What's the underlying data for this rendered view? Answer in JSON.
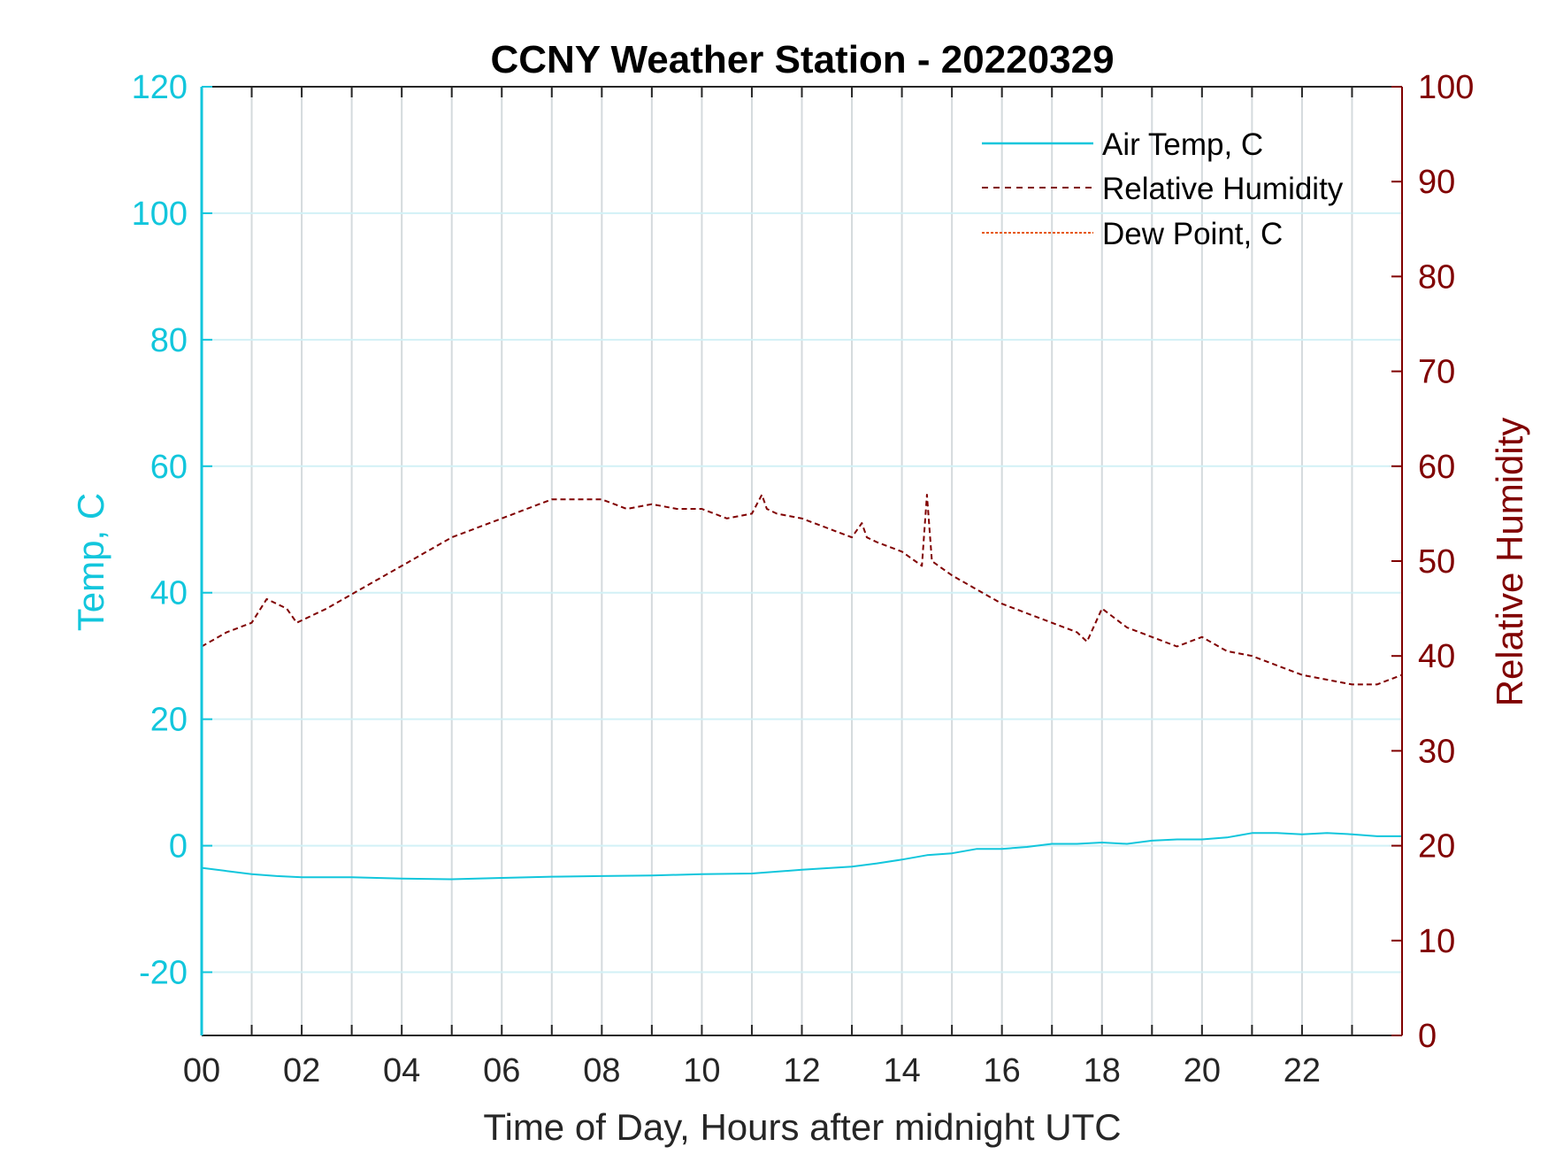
{
  "chart_data": {
    "type": "line",
    "title": "CCNY Weather Station - 20220329",
    "xlabel": "Time of Day, Hours after midnight UTC",
    "ylabel_left": "Temp, C",
    "ylabel_right": "Relative Humidity",
    "xlim": [
      0,
      24
    ],
    "ylim_left": [
      -30,
      120
    ],
    "ylim_right": [
      0,
      100
    ],
    "x_ticks": [
      0,
      2,
      4,
      6,
      8,
      10,
      12,
      14,
      16,
      18,
      20,
      22
    ],
    "x_tick_labels": [
      "00",
      "02",
      "04",
      "06",
      "08",
      "10",
      "12",
      "14",
      "16",
      "18",
      "20",
      "22"
    ],
    "y_left_ticks": [
      -20,
      0,
      20,
      40,
      60,
      80,
      100,
      120
    ],
    "y_left_tick_labels": [
      "-20",
      "0",
      "20",
      "40",
      "60",
      "80",
      "100",
      "120"
    ],
    "y_right_ticks": [
      0,
      10,
      20,
      30,
      40,
      50,
      60,
      70,
      80,
      90,
      100
    ],
    "y_right_tick_labels": [
      "0",
      "10",
      "20",
      "30",
      "40",
      "50",
      "60",
      "70",
      "80",
      "90",
      "100"
    ],
    "grid": true,
    "legend_position": "top-right",
    "series": [
      {
        "name": "Air Temp, C",
        "axis": "left",
        "color": "#12c6dc",
        "style": "solid",
        "x": [
          0,
          0.5,
          1,
          1.5,
          2,
          3,
          4,
          5,
          6,
          7,
          8,
          9,
          10,
          11,
          12,
          13,
          13.5,
          14,
          14.5,
          15,
          15.5,
          16,
          16.5,
          17,
          17.5,
          18,
          18.5,
          19,
          19.5,
          20,
          20.5,
          21,
          21.5,
          22,
          22.5,
          23,
          23.5,
          24
        ],
        "values": [
          -3.5,
          -4,
          -4.5,
          -4.8,
          -5,
          -5,
          -5.2,
          -5.3,
          -5.1,
          -4.9,
          -4.8,
          -4.7,
          -4.5,
          -4.4,
          -3.8,
          -3.3,
          -2.8,
          -2.2,
          -1.5,
          -1.2,
          -0.5,
          -0.5,
          -0.2,
          0.3,
          0.3,
          0.5,
          0.3,
          0.8,
          1.0,
          1.0,
          1.3,
          2.0,
          2.0,
          1.8,
          2.0,
          1.8,
          1.5,
          1.5
        ]
      },
      {
        "name": "Relative Humidity",
        "axis": "right",
        "color": "#800000",
        "style": "dashed",
        "x": [
          0,
          0.5,
          1,
          1.3,
          1.7,
          1.9,
          2.5,
          3,
          3.5,
          4,
          4.5,
          5,
          5.5,
          6,
          6.5,
          7,
          7.5,
          8,
          8.5,
          9,
          9.5,
          10,
          10.5,
          11,
          11.2,
          11.3,
          11.5,
          12,
          12.5,
          13,
          13.2,
          13.3,
          13.5,
          14,
          14.4,
          14.5,
          14.6,
          15,
          15.5,
          16,
          16.5,
          17,
          17.5,
          17.7,
          18,
          18.5,
          19,
          19.5,
          20,
          20.5,
          21,
          21.5,
          22,
          22.5,
          23,
          23.5,
          24
        ],
        "values": [
          41,
          42.5,
          43.5,
          46,
          45,
          43.5,
          45,
          46.5,
          48,
          49.5,
          51,
          52.5,
          53.5,
          54.5,
          55.5,
          56.5,
          56.5,
          56.5,
          55.5,
          56,
          55.5,
          55.5,
          54.5,
          55,
          57,
          55.5,
          55,
          54.5,
          53.5,
          52.5,
          54,
          52.5,
          52,
          51,
          49.5,
          57,
          50,
          48.5,
          47,
          45.5,
          44.5,
          43.5,
          42.5,
          41.5,
          45,
          43,
          42,
          41,
          42,
          40.5,
          40,
          39,
          38,
          37.5,
          37,
          37,
          38
        ]
      },
      {
        "name": "Dew Point, C",
        "axis": "left",
        "color": "#e6580f",
        "style": "dashed",
        "x": [],
        "values": []
      }
    ]
  }
}
